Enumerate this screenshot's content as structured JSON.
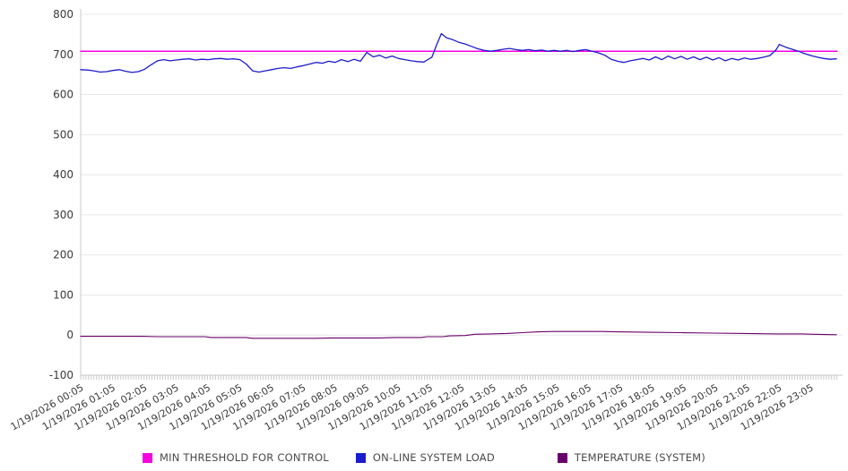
{
  "chart_data": {
    "type": "line",
    "title": "",
    "xlabel": "",
    "ylabel": "",
    "x_unit": "hours_after_midnight",
    "grid": true,
    "legend_position": "bottom",
    "y_axis": {
      "min": -100,
      "max": 800,
      "tick_step": 100,
      "ticks": [
        800,
        700,
        600,
        500,
        400,
        300,
        200,
        100,
        0,
        -100
      ]
    },
    "x_axis": {
      "first_label_hour": 0.0833,
      "hour_step": 1,
      "minor_ticks_per_hour": 12,
      "labels": [
        "1/19/2026 00:05",
        "1/19/2026 01:05",
        "1/19/2026 02:05",
        "1/19/2026 03:05",
        "1/19/2026 04:05",
        "1/19/2026 05:05",
        "1/19/2026 06:05",
        "1/19/2026 07:05",
        "1/19/2026 08:05",
        "1/19/2026 09:05",
        "1/19/2026 10:05",
        "1/19/2026 11:05",
        "1/19/2026 12:05",
        "1/19/2026 13:05",
        "1/19/2026 14:05",
        "1/19/2026 15:05",
        "1/19/2026 16:05",
        "1/19/2026 17:05",
        "1/19/2026 18:05",
        "1/19/2026 19:05",
        "1/19/2026 20:05",
        "1/19/2026 21:05",
        "1/19/2026 22:05",
        "1/19/2026 23:05"
      ]
    },
    "series": [
      {
        "name": "MIN THRESHOLD FOR CONTROL",
        "color": "#f900e1",
        "stroke_width": 1.5,
        "points": [
          [
            0.0833,
            708
          ],
          [
            23.92,
            708
          ]
        ]
      },
      {
        "name": "ON-LINE SYSTEM LOAD",
        "color": "#1c1ccd",
        "stroke_width": 1.3,
        "points": [
          [
            0.08,
            662
          ],
          [
            0.3,
            661
          ],
          [
            0.5,
            659
          ],
          [
            0.7,
            656
          ],
          [
            0.9,
            657
          ],
          [
            1.1,
            660
          ],
          [
            1.3,
            662
          ],
          [
            1.5,
            658
          ],
          [
            1.7,
            655
          ],
          [
            1.9,
            657
          ],
          [
            2.1,
            663
          ],
          [
            2.3,
            674
          ],
          [
            2.5,
            684
          ],
          [
            2.7,
            687
          ],
          [
            2.9,
            684
          ],
          [
            3.1,
            686
          ],
          [
            3.3,
            688
          ],
          [
            3.5,
            689
          ],
          [
            3.7,
            686
          ],
          [
            3.9,
            688
          ],
          [
            4.1,
            687
          ],
          [
            4.3,
            689
          ],
          [
            4.5,
            690
          ],
          [
            4.7,
            688
          ],
          [
            4.9,
            689
          ],
          [
            5.1,
            687
          ],
          [
            5.3,
            676
          ],
          [
            5.5,
            659
          ],
          [
            5.7,
            656
          ],
          [
            5.9,
            659
          ],
          [
            6.1,
            662
          ],
          [
            6.3,
            665
          ],
          [
            6.5,
            667
          ],
          [
            6.7,
            665
          ],
          [
            6.9,
            669
          ],
          [
            7.1,
            672
          ],
          [
            7.3,
            676
          ],
          [
            7.5,
            680
          ],
          [
            7.7,
            678
          ],
          [
            7.9,
            683
          ],
          [
            8.1,
            680
          ],
          [
            8.3,
            687
          ],
          [
            8.5,
            682
          ],
          [
            8.7,
            688
          ],
          [
            8.9,
            683
          ],
          [
            9.1,
            705
          ],
          [
            9.3,
            694
          ],
          [
            9.5,
            698
          ],
          [
            9.7,
            691
          ],
          [
            9.9,
            696
          ],
          [
            10.1,
            690
          ],
          [
            10.3,
            687
          ],
          [
            10.5,
            684
          ],
          [
            10.7,
            682
          ],
          [
            10.9,
            681
          ],
          [
            11.0,
            686
          ],
          [
            11.15,
            693
          ],
          [
            11.3,
            724
          ],
          [
            11.45,
            752
          ],
          [
            11.6,
            742
          ],
          [
            11.8,
            737
          ],
          [
            12.0,
            730
          ],
          [
            12.2,
            726
          ],
          [
            12.4,
            720
          ],
          [
            12.6,
            714
          ],
          [
            12.8,
            710
          ],
          [
            13.0,
            708
          ],
          [
            13.2,
            710
          ],
          [
            13.4,
            713
          ],
          [
            13.6,
            715
          ],
          [
            13.8,
            712
          ],
          [
            14.0,
            710
          ],
          [
            14.2,
            712
          ],
          [
            14.4,
            709
          ],
          [
            14.6,
            711
          ],
          [
            14.8,
            708
          ],
          [
            15.0,
            710
          ],
          [
            15.2,
            708
          ],
          [
            15.4,
            710
          ],
          [
            15.6,
            707
          ],
          [
            15.8,
            710
          ],
          [
            16.0,
            712
          ],
          [
            16.2,
            708
          ],
          [
            16.4,
            704
          ],
          [
            16.6,
            698
          ],
          [
            16.8,
            688
          ],
          [
            17.0,
            683
          ],
          [
            17.2,
            680
          ],
          [
            17.4,
            684
          ],
          [
            17.6,
            687
          ],
          [
            17.8,
            690
          ],
          [
            18.0,
            686
          ],
          [
            18.2,
            694
          ],
          [
            18.4,
            687
          ],
          [
            18.6,
            696
          ],
          [
            18.8,
            689
          ],
          [
            19.0,
            695
          ],
          [
            19.2,
            688
          ],
          [
            19.4,
            694
          ],
          [
            19.6,
            687
          ],
          [
            19.8,
            693
          ],
          [
            20.0,
            686
          ],
          [
            20.2,
            692
          ],
          [
            20.4,
            684
          ],
          [
            20.6,
            690
          ],
          [
            20.8,
            686
          ],
          [
            21.0,
            691
          ],
          [
            21.2,
            688
          ],
          [
            21.4,
            690
          ],
          [
            21.6,
            693
          ],
          [
            21.8,
            697
          ],
          [
            22.0,
            712
          ],
          [
            22.1,
            725
          ],
          [
            22.3,
            718
          ],
          [
            22.5,
            713
          ],
          [
            22.7,
            708
          ],
          [
            22.9,
            702
          ],
          [
            23.1,
            697
          ],
          [
            23.3,
            693
          ],
          [
            23.5,
            690
          ],
          [
            23.7,
            688
          ],
          [
            23.9,
            689
          ]
        ]
      },
      {
        "name": "TEMPERATURE (SYSTEM)",
        "color": "#6a006a",
        "stroke_width": 1.1,
        "points": [
          [
            0.08,
            -3
          ],
          [
            1.0,
            -3
          ],
          [
            2.0,
            -3
          ],
          [
            2.5,
            -4
          ],
          [
            4.0,
            -4
          ],
          [
            4.2,
            -6
          ],
          [
            5.3,
            -6
          ],
          [
            5.5,
            -8
          ],
          [
            7.5,
            -8
          ],
          [
            8.0,
            -7
          ],
          [
            9.5,
            -7
          ],
          [
            10.0,
            -6
          ],
          [
            10.8,
            -6
          ],
          [
            11.0,
            -4
          ],
          [
            11.5,
            -4
          ],
          [
            11.7,
            -2
          ],
          [
            12.2,
            -1
          ],
          [
            12.5,
            2
          ],
          [
            13.0,
            3
          ],
          [
            13.5,
            4
          ],
          [
            14.0,
            6
          ],
          [
            14.5,
            8
          ],
          [
            15.0,
            9
          ],
          [
            16.5,
            9
          ],
          [
            17.0,
            8
          ],
          [
            18.0,
            7
          ],
          [
            19.0,
            6
          ],
          [
            20.0,
            5
          ],
          [
            21.0,
            4
          ],
          [
            22.0,
            3
          ],
          [
            22.8,
            3
          ],
          [
            23.2,
            2
          ],
          [
            23.9,
            1
          ]
        ]
      }
    ]
  },
  "colors": {
    "gridline": "#e8e8e8",
    "axis_line": "#c9c9c9",
    "tick": "#b5b5b5",
    "tick_label": "#3a3a3a"
  }
}
